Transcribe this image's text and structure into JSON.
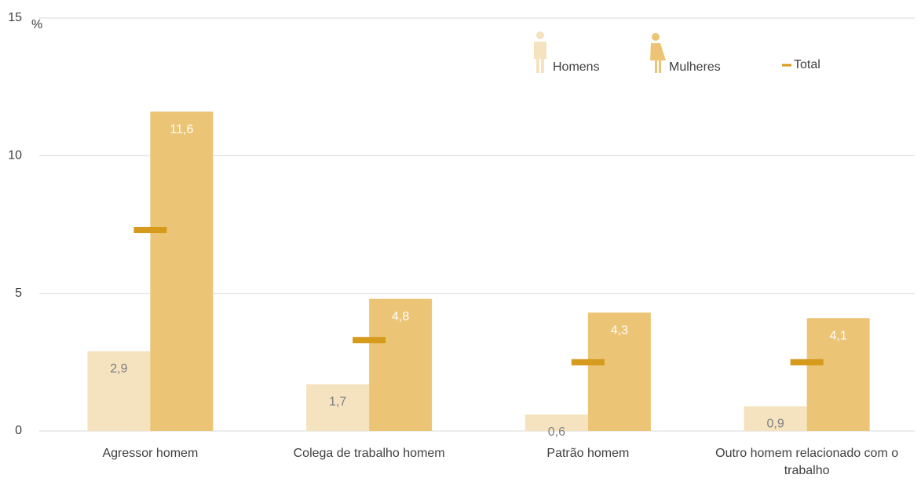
{
  "chart_data": {
    "type": "bar",
    "y_unit": "%",
    "categories": [
      "Agressor homem",
      "Colega de trabalho homem",
      "Patrão homem",
      "Outro homem relacionado com o trabalho"
    ],
    "series": [
      {
        "name": "Homens",
        "color": "#f5e3c0",
        "values": [
          2.9,
          1.7,
          0.6,
          0.9
        ],
        "value_labels": [
          "2,9",
          "1,7",
          "0,6",
          "0,9"
        ]
      },
      {
        "name": "Mulheres",
        "color": "#ecc475",
        "values": [
          11.6,
          4.8,
          4.3,
          4.1
        ],
        "value_labels": [
          "11,6",
          "4,8",
          "4,3",
          "4,1"
        ]
      },
      {
        "name": "Total",
        "color": "#d69a1c",
        "values": [
          7.3,
          3.3,
          2.5,
          2.5
        ]
      }
    ],
    "ylim": [
      0,
      15
    ],
    "yticks": [
      0,
      5,
      10,
      15
    ],
    "grid": true
  }
}
